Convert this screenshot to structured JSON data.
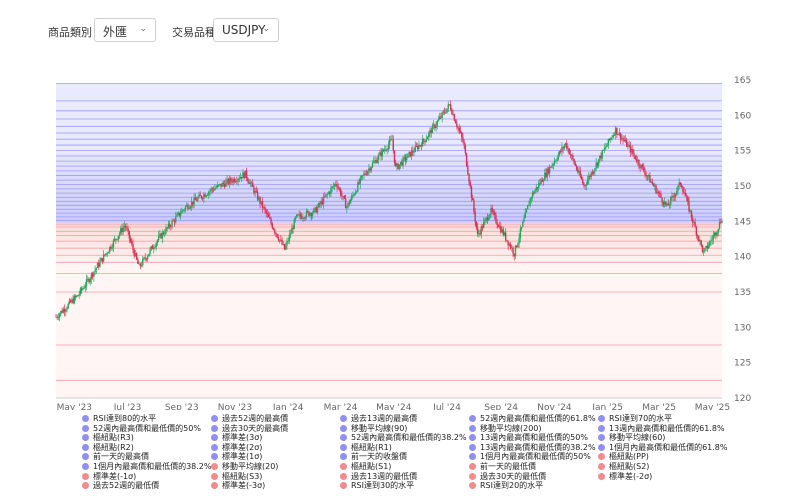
{
  "filters": {
    "category_label": "商品類別 :",
    "category_value": "外匯",
    "product_label": "交易品種 :",
    "product_value": "USDJPY"
  },
  "colors": {
    "resistance": "#8f8ff5",
    "support": "#f28b8b",
    "up": "#26a65b",
    "down": "#d9304f"
  },
  "chart_data": {
    "type": "candlestick",
    "symbol": "USDJPY",
    "ylim": [
      120,
      165
    ],
    "y_ticks": [
      120,
      125,
      130,
      135,
      140,
      145,
      150,
      155,
      160,
      165
    ],
    "x_ticks": [
      {
        "label": "May '23",
        "date": "2023-05-01"
      },
      {
        "label": "Jul '23",
        "date": "2023-07-01"
      },
      {
        "label": "Sep '23",
        "date": "2023-09-01"
      },
      {
        "label": "Nov '23",
        "date": "2023-11-01"
      },
      {
        "label": "Jan '24",
        "date": "2024-01-01"
      },
      {
        "label": "Mar '24",
        "date": "2024-03-01"
      },
      {
        "label": "May '24",
        "date": "2024-05-01"
      },
      {
        "label": "Jul '24",
        "date": "2024-07-01"
      },
      {
        "label": "Sep '24",
        "date": "2024-09-01"
      },
      {
        "label": "Nov '24",
        "date": "2024-11-01"
      },
      {
        "label": "Jan '25",
        "date": "2025-01-01"
      },
      {
        "label": "Mar '25",
        "date": "2025-03-01"
      },
      {
        "label": "May '25",
        "date": "2025-05-01"
      }
    ],
    "price_path": [
      {
        "date": "2023-04-10",
        "close": 131.5
      },
      {
        "date": "2023-05-05",
        "close": 134.5
      },
      {
        "date": "2023-06-01",
        "close": 139.5
      },
      {
        "date": "2023-06-28",
        "close": 144.5
      },
      {
        "date": "2023-07-14",
        "close": 138.5
      },
      {
        "date": "2023-08-05",
        "close": 142.5
      },
      {
        "date": "2023-09-05",
        "close": 147.0
      },
      {
        "date": "2023-10-05",
        "close": 149.5
      },
      {
        "date": "2023-11-13",
        "close": 151.7
      },
      {
        "date": "2023-12-05",
        "close": 146.5
      },
      {
        "date": "2023-12-28",
        "close": 141.0
      },
      {
        "date": "2024-01-10",
        "close": 145.5
      },
      {
        "date": "2024-02-01",
        "close": 146.5
      },
      {
        "date": "2024-02-25",
        "close": 150.5
      },
      {
        "date": "2024-03-08",
        "close": 147.0
      },
      {
        "date": "2024-03-27",
        "close": 151.5
      },
      {
        "date": "2024-04-29",
        "close": 156.5
      },
      {
        "date": "2024-05-03",
        "close": 152.5
      },
      {
        "date": "2024-06-05",
        "close": 156.5
      },
      {
        "date": "2024-07-04",
        "close": 161.5
      },
      {
        "date": "2024-07-20",
        "close": 156.0
      },
      {
        "date": "2024-08-05",
        "close": 143.0
      },
      {
        "date": "2024-08-20",
        "close": 146.5
      },
      {
        "date": "2024-09-16",
        "close": 140.5
      },
      {
        "date": "2024-10-05",
        "close": 148.5
      },
      {
        "date": "2024-11-14",
        "close": 156.0
      },
      {
        "date": "2024-12-05",
        "close": 150.0
      },
      {
        "date": "2025-01-10",
        "close": 158.0
      },
      {
        "date": "2025-01-25",
        "close": 155.5
      },
      {
        "date": "2025-02-15",
        "close": 151.5
      },
      {
        "date": "2025-03-10",
        "close": 147.0
      },
      {
        "date": "2025-03-26",
        "close": 150.5
      },
      {
        "date": "2025-04-10",
        "close": 144.5
      },
      {
        "date": "2025-04-21",
        "close": 140.5
      },
      {
        "date": "2025-05-05",
        "close": 143.5
      },
      {
        "date": "2025-05-12",
        "close": 145.5
      }
    ],
    "level_band": [
      142,
      164.5
    ],
    "pivot": 144.8,
    "legend": [
      {
        "label": "RSI達到80的水平",
        "color": "#8f8ff5"
      },
      {
        "label": "過去52週的最高價",
        "color": "#8f8ff5"
      },
      {
        "label": "過去13週的最高價",
        "color": "#8f8ff5"
      },
      {
        "label": "52週內最高價和最低價的61.8%",
        "color": "#8f8ff5"
      },
      {
        "label": "RSI達到70的水平",
        "color": "#8f8ff5"
      },
      {
        "label": "52週內最高價和最低價的50%",
        "color": "#8f8ff5"
      },
      {
        "label": "過去30天的最高價",
        "color": "#8f8ff5"
      },
      {
        "label": "移動平均線(90)",
        "color": "#8f8ff5"
      },
      {
        "label": "移動平均線(200)",
        "color": "#8f8ff5"
      },
      {
        "label": "13週內最高價和最低價的61.8%",
        "color": "#8f8ff5"
      },
      {
        "label": "樞紐點(R3)",
        "color": "#8f8ff5"
      },
      {
        "label": "標準差(3σ)",
        "color": "#8f8ff5"
      },
      {
        "label": "52週內最高價和最低價的38.2%",
        "color": "#8f8ff5"
      },
      {
        "label": "13週內最高價和最低價的50%",
        "color": "#8f8ff5"
      },
      {
        "label": "移動平均線(60)",
        "color": "#8f8ff5"
      },
      {
        "label": "樞紐點(R2)",
        "color": "#8f8ff5"
      },
      {
        "label": "標準差(2σ)",
        "color": "#8f8ff5"
      },
      {
        "label": "樞紐點(R1)",
        "color": "#8f8ff5"
      },
      {
        "label": "13週內最高價和最低價的38.2%",
        "color": "#8f8ff5"
      },
      {
        "label": "1個月內最高價和最低價的61.8%",
        "color": "#8f8ff5"
      },
      {
        "label": "前一天的最高價",
        "color": "#8f8ff5"
      },
      {
        "label": "標準差(1σ)",
        "color": "#8f8ff5"
      },
      {
        "label": "前一天的收盤價",
        "color": "#8f8ff5"
      },
      {
        "label": "1個月內最高價和最低價的50%",
        "color": "#8f8ff5"
      },
      {
        "label": "樞紐點(PP)",
        "color": "#f28b8b"
      },
      {
        "label": "1個月內最高價和最低價的38.2%",
        "color": "#8f8ff5"
      },
      {
        "label": "移動平均線(20)",
        "color": "#f28b8b"
      },
      {
        "label": "樞紐點(S1)",
        "color": "#f28b8b"
      },
      {
        "label": "前一天的最低價",
        "color": "#f28b8b"
      },
      {
        "label": "樞紐點(S2)",
        "color": "#f28b8b"
      },
      {
        "label": "標準差(-1σ)",
        "color": "#f28b8b"
      },
      {
        "label": "樞紐點(S3)",
        "color": "#f28b8b"
      },
      {
        "label": "過去13週的最低價",
        "color": "#f28b8b"
      },
      {
        "label": "過去30天的最低價",
        "color": "#f28b8b"
      },
      {
        "label": "標準差(-2σ)",
        "color": "#f28b8b"
      },
      {
        "label": "過去52週的最低價",
        "color": "#f28b8b"
      },
      {
        "label": "標準差(-3σ)",
        "color": "#f28b8b"
      },
      {
        "label": "RSI達到30的水平",
        "color": "#f28b8b"
      },
      {
        "label": "RSI達到20的水平",
        "color": "#f28b8b"
      }
    ]
  }
}
